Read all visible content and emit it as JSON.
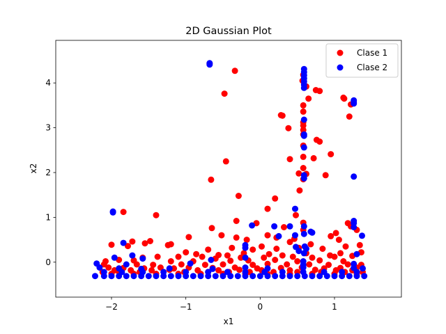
{
  "chart_data": {
    "type": "scatter",
    "title": "2D Gaussian Plot",
    "xlabel": "x1",
    "ylabel": "x2",
    "xlim": [
      -2.75,
      1.9
    ],
    "ylim": [
      -0.78,
      4.95
    ],
    "x_ticks": [
      -2,
      -1,
      0,
      1
    ],
    "y_ticks": [
      0,
      1,
      2,
      3,
      4
    ],
    "x_tick_labels": [
      "−2",
      "−1",
      "0",
      "1"
    ],
    "y_tick_labels": [
      "0",
      "1",
      "2",
      "3",
      "4"
    ],
    "grid": false,
    "legend_position": "top-right",
    "series": [
      {
        "name": "Clase 1",
        "color": "#ff0000",
        "points": [
          [
            -0.68,
            4.43
          ],
          [
            -0.34,
            4.27
          ],
          [
            -0.48,
            3.76
          ],
          [
            0.58,
            4.18
          ],
          [
            0.57,
            4.05
          ],
          [
            0.62,
            3.92
          ],
          [
            0.75,
            3.84
          ],
          [
            0.8,
            3.82
          ],
          [
            1.12,
            3.67
          ],
          [
            1.13,
            3.65
          ],
          [
            1.22,
            3.52
          ],
          [
            0.65,
            3.65
          ],
          [
            0.58,
            3.5
          ],
          [
            0.58,
            3.36
          ],
          [
            0.3,
            3.27
          ],
          [
            0.28,
            3.28
          ],
          [
            1.2,
            3.25
          ],
          [
            0.58,
            3.12
          ],
          [
            0.58,
            3.05
          ],
          [
            0.38,
            2.99
          ],
          [
            0.58,
            2.95
          ],
          [
            0.58,
            2.85
          ],
          [
            0.76,
            2.73
          ],
          [
            0.8,
            2.69
          ],
          [
            0.58,
            2.6
          ],
          [
            0.95,
            2.41
          ],
          [
            0.58,
            2.35
          ],
          [
            0.4,
            2.3
          ],
          [
            0.72,
            2.32
          ],
          [
            -0.46,
            2.25
          ],
          [
            0.58,
            2.1
          ],
          [
            0.52,
            1.98
          ],
          [
            0.62,
            1.97
          ],
          [
            0.88,
            1.94
          ],
          [
            0.58,
            1.85
          ],
          [
            -0.66,
            1.84
          ],
          [
            0.53,
            1.6
          ],
          [
            -0.29,
            1.48
          ],
          [
            0.2,
            1.42
          ],
          [
            0.1,
            1.19
          ],
          [
            -1.84,
            1.12
          ],
          [
            -1.4,
            1.05
          ],
          [
            0.48,
            1.05
          ],
          [
            -0.32,
            0.92
          ],
          [
            -0.05,
            0.87
          ],
          [
            0.58,
            0.88
          ],
          [
            1.18,
            0.87
          ],
          [
            1.22,
            0.8
          ],
          [
            -0.65,
            0.76
          ],
          [
            0.32,
            0.78
          ],
          [
            0.58,
            0.72
          ],
          [
            1.02,
            0.65
          ],
          [
            1.3,
            0.72
          ],
          [
            -0.52,
            0.6
          ],
          [
            -0.32,
            0.55
          ],
          [
            -0.96,
            0.56
          ],
          [
            0.1,
            0.6
          ],
          [
            0.22,
            0.55
          ],
          [
            0.95,
            0.58
          ],
          [
            1.06,
            0.5
          ],
          [
            -0.18,
            0.5
          ],
          [
            -1.72,
            0.46
          ],
          [
            -1.55,
            0.42
          ],
          [
            -1.48,
            0.47
          ],
          [
            -1.2,
            0.4
          ],
          [
            -1.24,
            0.38
          ],
          [
            -2.0,
            0.39
          ],
          [
            -1.78,
            0.36
          ],
          [
            0.4,
            0.45
          ],
          [
            0.46,
            0.52
          ],
          [
            0.68,
            0.4
          ],
          [
            1.15,
            0.35
          ],
          [
            -0.38,
            0.32
          ],
          [
            -0.7,
            0.28
          ],
          [
            0.02,
            0.35
          ],
          [
            -0.1,
            0.28
          ],
          [
            0.22,
            0.3
          ],
          [
            0.52,
            0.32
          ],
          [
            0.84,
            0.3
          ],
          [
            1.34,
            0.38
          ],
          [
            -1.0,
            0.22
          ],
          [
            -0.86,
            0.18
          ],
          [
            -0.56,
            0.16
          ],
          [
            -0.44,
            0.15
          ],
          [
            -0.22,
            0.2
          ],
          [
            0.12,
            0.18
          ],
          [
            0.3,
            0.15
          ],
          [
            0.62,
            0.2
          ],
          [
            0.94,
            0.15
          ],
          [
            1.08,
            0.2
          ],
          [
            1.36,
            0.22
          ],
          [
            -1.58,
            0.1
          ],
          [
            -1.38,
            0.12
          ],
          [
            -1.1,
            0.12
          ],
          [
            -0.78,
            0.12
          ],
          [
            -0.6,
            0.08
          ],
          [
            -0.26,
            0.1
          ],
          [
            0.05,
            0.1
          ],
          [
            0.44,
            0.12
          ],
          [
            0.7,
            0.1
          ],
          [
            1.0,
            0.12
          ],
          [
            1.24,
            0.14
          ],
          [
            -2.08,
            0.02
          ],
          [
            -1.9,
            0.05
          ],
          [
            -1.7,
            0.04
          ],
          [
            -1.2,
            0.02
          ],
          [
            -0.9,
            0.02
          ],
          [
            -0.4,
            0.03
          ],
          [
            -0.16,
            0.04
          ],
          [
            0.2,
            0.05
          ],
          [
            0.5,
            0.02
          ],
          [
            0.8,
            0.04
          ],
          [
            1.12,
            0.02
          ],
          [
            -2.1,
            -0.05
          ],
          [
            -1.66,
            -0.05
          ],
          [
            -1.44,
            -0.06
          ],
          [
            -1.06,
            -0.05
          ],
          [
            -0.74,
            -0.06
          ],
          [
            -0.5,
            -0.05
          ],
          [
            -0.1,
            -0.06
          ],
          [
            0.1,
            -0.04
          ],
          [
            0.36,
            -0.05
          ],
          [
            0.66,
            -0.05
          ],
          [
            0.92,
            -0.06
          ],
          [
            1.18,
            -0.05
          ],
          [
            1.36,
            -0.06
          ],
          [
            -2.04,
            -0.12
          ],
          [
            -1.84,
            -0.13
          ],
          [
            -1.56,
            -0.14
          ],
          [
            -1.34,
            -0.12
          ],
          [
            -1.16,
            -0.14
          ],
          [
            -0.96,
            -0.12
          ],
          [
            -0.64,
            -0.13
          ],
          [
            -0.34,
            -0.12
          ],
          [
            -0.04,
            -0.14
          ],
          [
            0.28,
            -0.13
          ],
          [
            0.56,
            -0.12
          ],
          [
            0.86,
            -0.14
          ],
          [
            1.08,
            -0.13
          ],
          [
            1.3,
            -0.12
          ],
          [
            -1.96,
            -0.18
          ],
          [
            -1.74,
            -0.18
          ],
          [
            -1.46,
            -0.18
          ],
          [
            -1.22,
            -0.17
          ],
          [
            -0.84,
            -0.18
          ],
          [
            -0.56,
            -0.18
          ],
          [
            -0.28,
            -0.17
          ],
          [
            0.02,
            -0.18
          ],
          [
            0.4,
            -0.18
          ],
          [
            0.74,
            -0.17
          ],
          [
            1.02,
            -0.18
          ],
          [
            1.24,
            -0.18
          ],
          [
            -2.12,
            -0.22
          ],
          [
            -1.9,
            -0.22
          ],
          [
            -1.62,
            -0.22
          ],
          [
            -1.3,
            -0.22
          ],
          [
            -1.02,
            -0.22
          ],
          [
            -0.7,
            -0.22
          ],
          [
            -0.42,
            -0.22
          ],
          [
            -0.14,
            -0.22
          ],
          [
            0.18,
            -0.22
          ],
          [
            0.5,
            -0.22
          ],
          [
            0.82,
            -0.22
          ],
          [
            1.14,
            -0.22
          ],
          [
            1.38,
            -0.22
          ],
          [
            -2.0,
            -0.26
          ],
          [
            -1.7,
            -0.26
          ],
          [
            -1.4,
            -0.26
          ],
          [
            -1.1,
            -0.26
          ],
          [
            -0.8,
            -0.26
          ],
          [
            -0.5,
            -0.26
          ],
          [
            -0.2,
            -0.26
          ],
          [
            0.1,
            -0.26
          ],
          [
            0.4,
            -0.26
          ],
          [
            0.7,
            -0.26
          ],
          [
            1.0,
            -0.26
          ],
          [
            1.3,
            -0.26
          ]
        ]
      },
      {
        "name": "Clase 2",
        "color": "#0000ff",
        "points": [
          [
            -0.68,
            4.44
          ],
          [
            -0.68,
            4.41
          ],
          [
            0.59,
            4.31
          ],
          [
            0.59,
            4.24
          ],
          [
            0.59,
            4.17
          ],
          [
            0.59,
            4.1
          ],
          [
            0.59,
            4.03
          ],
          [
            0.59,
            3.96
          ],
          [
            0.59,
            3.89
          ],
          [
            1.26,
            3.61
          ],
          [
            1.26,
            3.57
          ],
          [
            1.26,
            3.54
          ],
          [
            0.59,
            3.18
          ],
          [
            0.59,
            2.85
          ],
          [
            0.59,
            2.82
          ],
          [
            0.59,
            2.56
          ],
          [
            0.59,
            1.94
          ],
          [
            0.59,
            1.87
          ],
          [
            1.26,
            1.91
          ],
          [
            -1.98,
            1.13
          ],
          [
            -1.98,
            1.11
          ],
          [
            0.47,
            1.19
          ],
          [
            1.26,
            0.92
          ],
          [
            1.26,
            0.87
          ],
          [
            -0.11,
            0.82
          ],
          [
            0.19,
            0.8
          ],
          [
            0.4,
            0.8
          ],
          [
            0.59,
            0.8
          ],
          [
            1.26,
            0.78
          ],
          [
            0.68,
            0.68
          ],
          [
            0.7,
            0.66
          ],
          [
            0.59,
            0.63
          ],
          [
            0.47,
            0.6
          ],
          [
            0.25,
            0.58
          ],
          [
            1.37,
            0.59
          ],
          [
            -1.84,
            0.43
          ],
          [
            -0.2,
            0.38
          ],
          [
            -0.2,
            0.32
          ],
          [
            0.6,
            0.35
          ],
          [
            0.62,
            0.3
          ],
          [
            0.48,
            0.34
          ],
          [
            0.52,
            0.25
          ],
          [
            0.59,
            0.2
          ],
          [
            1.3,
            0.18
          ],
          [
            -1.96,
            0.1
          ],
          [
            -1.72,
            0.15
          ],
          [
            -1.58,
            0.08
          ],
          [
            -0.66,
            0.05
          ],
          [
            -0.2,
            0.1
          ],
          [
            0.58,
            0.02
          ],
          [
            -0.94,
            -0.03
          ],
          [
            -1.8,
            -0.05
          ],
          [
            -2.2,
            -0.03
          ],
          [
            0.58,
            -0.06
          ],
          [
            1.26,
            -0.04
          ],
          [
            -2.16,
            -0.12
          ],
          [
            -1.9,
            -0.14
          ],
          [
            -1.6,
            -0.15
          ],
          [
            -1.22,
            -0.14
          ],
          [
            -0.64,
            -0.15
          ],
          [
            -0.2,
            -0.12
          ],
          [
            0.1,
            -0.14
          ],
          [
            0.58,
            -0.12
          ],
          [
            1.26,
            -0.13
          ],
          [
            1.38,
            -0.14
          ],
          [
            -2.1,
            -0.22
          ],
          [
            -1.86,
            -0.22
          ],
          [
            -1.58,
            -0.22
          ],
          [
            -1.3,
            -0.22
          ],
          [
            -1.0,
            -0.22
          ],
          [
            -0.7,
            -0.22
          ],
          [
            -0.44,
            -0.22
          ],
          [
            -0.2,
            -0.22
          ],
          [
            0.06,
            -0.22
          ],
          [
            0.3,
            -0.22
          ],
          [
            0.58,
            -0.22
          ],
          [
            0.86,
            -0.22
          ],
          [
            1.1,
            -0.22
          ],
          [
            1.3,
            -0.22
          ],
          [
            -2.22,
            -0.31
          ],
          [
            -2.1,
            -0.31
          ],
          [
            -2.0,
            -0.31
          ],
          [
            -1.9,
            -0.31
          ],
          [
            -1.8,
            -0.31
          ],
          [
            -1.7,
            -0.31
          ],
          [
            -1.6,
            -0.31
          ],
          [
            -1.5,
            -0.31
          ],
          [
            -1.4,
            -0.31
          ],
          [
            -1.3,
            -0.31
          ],
          [
            -1.2,
            -0.31
          ],
          [
            -1.1,
            -0.31
          ],
          [
            -1.0,
            -0.31
          ],
          [
            -0.9,
            -0.31
          ],
          [
            -0.8,
            -0.31
          ],
          [
            -0.7,
            -0.31
          ],
          [
            -0.6,
            -0.31
          ],
          [
            -0.5,
            -0.31
          ],
          [
            -0.4,
            -0.31
          ],
          [
            -0.3,
            -0.31
          ],
          [
            -0.2,
            -0.31
          ],
          [
            -0.1,
            -0.31
          ],
          [
            0.0,
            -0.31
          ],
          [
            0.1,
            -0.31
          ],
          [
            0.2,
            -0.31
          ],
          [
            0.3,
            -0.31
          ],
          [
            0.4,
            -0.31
          ],
          [
            0.5,
            -0.31
          ],
          [
            0.6,
            -0.31
          ],
          [
            0.7,
            -0.31
          ],
          [
            0.8,
            -0.31
          ],
          [
            0.9,
            -0.31
          ],
          [
            1.0,
            -0.31
          ],
          [
            1.1,
            -0.31
          ],
          [
            1.2,
            -0.31
          ],
          [
            1.3,
            -0.31
          ],
          [
            1.4,
            -0.31
          ]
        ]
      }
    ]
  }
}
